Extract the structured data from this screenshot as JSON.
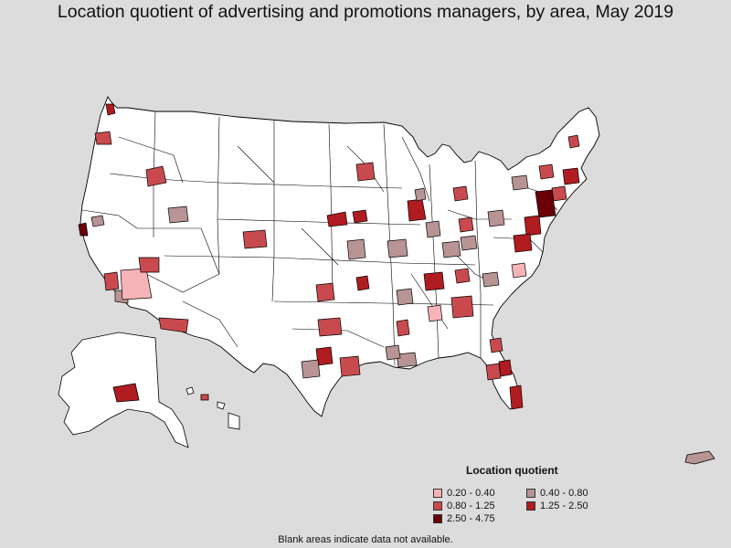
{
  "title": "Location quotient of advertising and promotions managers, by area, May 2019",
  "legend": {
    "title": "Location quotient",
    "items": [
      {
        "label": "0.20 - 0.40",
        "color": "#f7b4b8"
      },
      {
        "label": "0.40 - 0.80",
        "color": "#b89494"
      },
      {
        "label": "0.80 - 1.25",
        "color": "#c94a4e"
      },
      {
        "label": "1.25 - 2.50",
        "color": "#b01c20"
      },
      {
        "label": "2.50 - 4.75",
        "color": "#6a0008"
      }
    ]
  },
  "footnote": "Blank areas indicate data not available.",
  "colors": {
    "background": "#dcdcdc",
    "land": "#ffffff",
    "border": "#000000"
  }
}
